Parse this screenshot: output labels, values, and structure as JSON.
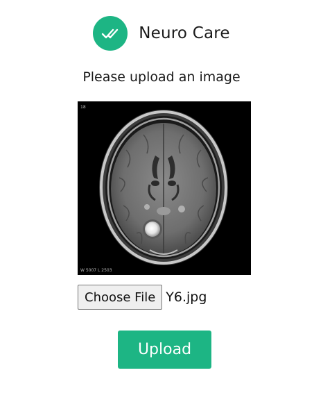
{
  "header": {
    "title": "Neuro Care",
    "logo_icon": "double-check-icon"
  },
  "main": {
    "prompt": "Please upload an image",
    "preview": {
      "corner_label": "18",
      "footer_label": "W 5007 L 2503"
    },
    "file_input": {
      "button_label": "Choose File",
      "selected_file": "Y6.jpg"
    },
    "upload_label": "Upload"
  },
  "colors": {
    "accent": "#1db584",
    "background": "#ffffff"
  }
}
